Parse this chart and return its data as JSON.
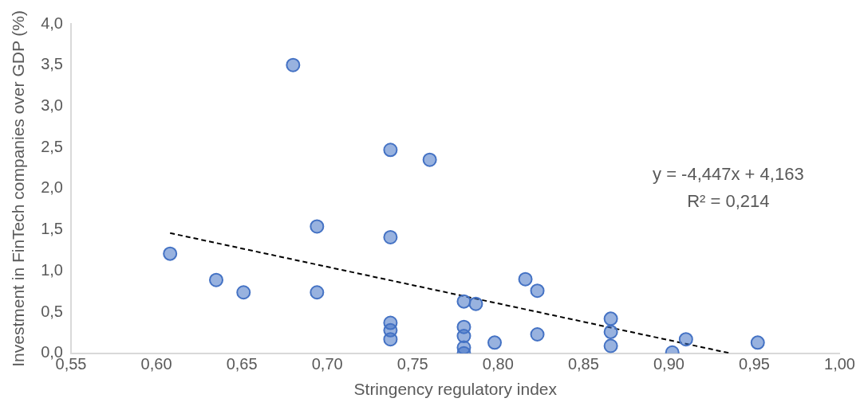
{
  "chart_data": {
    "type": "scatter",
    "xlabel": "Stringency regulatory index",
    "ylabel": "Investment in FinTech companies over GDP (%)",
    "xlim": [
      0.55,
      1.0
    ],
    "xticks": [
      {
        "value": 0.55,
        "label": "0,55"
      },
      {
        "value": 0.6,
        "label": "0,60"
      },
      {
        "value": 0.65,
        "label": "0,65"
      },
      {
        "value": 0.7,
        "label": "0,70"
      },
      {
        "value": 0.75,
        "label": "0,75"
      },
      {
        "value": 0.8,
        "label": "0,80"
      },
      {
        "value": 0.85,
        "label": "0,85"
      },
      {
        "value": 0.9,
        "label": "0,90"
      },
      {
        "value": 0.95,
        "label": "0,95"
      },
      {
        "value": 1.0,
        "label": "1,00"
      }
    ],
    "ylim": [
      0,
      4
    ],
    "yticks": [
      {
        "value": 0,
        "label": "0,0"
      },
      {
        "value": 0.5,
        "label": "0,5"
      },
      {
        "value": 1,
        "label": "1,0"
      },
      {
        "value": 1.5,
        "label": "1,5"
      },
      {
        "value": 2,
        "label": "2,0"
      },
      {
        "value": 2.5,
        "label": "2,5"
      },
      {
        "value": 3,
        "label": "3,0"
      },
      {
        "value": 3.5,
        "label": "3,5"
      },
      {
        "value": 4,
        "label": "4,0"
      }
    ],
    "grid": false,
    "legend": false,
    "marker": "circle",
    "series": [
      {
        "type": "scatter",
        "color": "#4472c4",
        "x": [
          0.608,
          0.635,
          0.651,
          0.68,
          0.694,
          0.694,
          0.737,
          0.737,
          0.737,
          0.737,
          0.737,
          0.76,
          0.78,
          0.787,
          0.78,
          0.78,
          0.78,
          0.78,
          0.798,
          0.816,
          0.823,
          0.823,
          0.866,
          0.866,
          0.866,
          0.902,
          0.91,
          0.952
        ],
        "values": [
          1.21,
          0.89,
          0.74,
          3.5,
          1.54,
          0.74,
          2.47,
          1.41,
          0.37,
          0.28,
          0.17,
          2.35,
          0.63,
          0.6,
          0.32,
          0.21,
          0.07,
          0.0,
          0.13,
          0.9,
          0.76,
          0.23,
          0.42,
          0.26,
          0.09,
          0.01,
          0.17,
          0.13
        ]
      },
      {
        "type": "line",
        "color": "#000000",
        "line_style": "dashed",
        "marker": "none",
        "x": [
          0.608,
          0.936
        ],
        "values": [
          1.46,
          0.0
        ]
      }
    ],
    "annotations": [
      "y = -4,447x + 4,163",
      "R² = 0,214"
    ]
  }
}
